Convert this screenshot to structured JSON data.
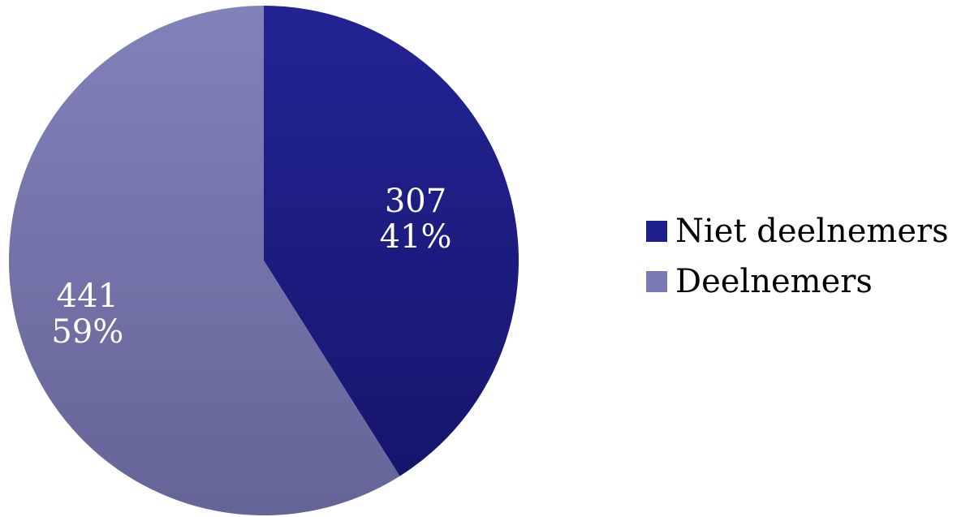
{
  "chart_data": {
    "type": "pie",
    "categories": [
      "Niet deelnemers",
      "Deelnemers"
    ],
    "values": [
      307,
      441
    ],
    "percent_labels": [
      "41%",
      "59%"
    ],
    "value_labels": [
      "307",
      "441"
    ],
    "colors": [
      "#1e1e8c",
      "#7a7ab4"
    ],
    "legend_position": "right",
    "start_angle": "top",
    "direction": "clockwise"
  }
}
